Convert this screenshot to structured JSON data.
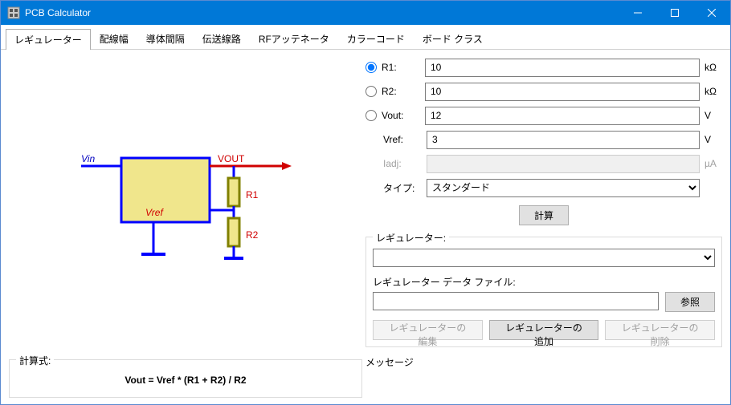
{
  "window": {
    "title": "PCB Calculator"
  },
  "tabs": {
    "items": [
      "レギュレーター",
      "配線幅",
      "導体間隔",
      "伝送線路",
      "RFアッテネータ",
      "カラーコード",
      "ボード クラス"
    ],
    "active_index": 0
  },
  "diagram": {
    "vin": "Vin",
    "vout": "VOUT",
    "vref": "Vref",
    "r1": "R1",
    "r2": "R2",
    "box_fill": "#f0e68c",
    "box_stroke": "#0000ff",
    "resistor_fill": "#f0e68c",
    "resistor_stroke": "#808000",
    "wire_color": "#0000ff",
    "text_red": "#d00000",
    "text_blue": "#0000c0"
  },
  "formula": {
    "legend": "計算式:",
    "text": "Vout = Vref * (R1 + R2) / R2"
  },
  "form": {
    "r1": {
      "label": "R1:",
      "value": "10",
      "unit": "kΩ",
      "selected": true
    },
    "r2": {
      "label": "R2:",
      "value": "10",
      "unit": "kΩ",
      "selected": false
    },
    "vout": {
      "label": "Vout:",
      "value": "12",
      "unit": "V",
      "selected": false
    },
    "vref": {
      "label": "Vref:",
      "value": "3",
      "unit": "V"
    },
    "iadj": {
      "label": "Iadj:",
      "value": "",
      "unit": "µA",
      "disabled": true
    },
    "type": {
      "label": "タイプ:",
      "value": "スタンダード"
    },
    "calc_btn": "計算"
  },
  "regulator_group": {
    "legend": "レギュレーター:",
    "select_value": "",
    "file_label": "レギュレーター データ ファイル:",
    "file_value": "",
    "browse_btn": "参照",
    "edit_btn": "レギュレーターの編集",
    "add_btn": "レギュレーターの追加",
    "del_btn": "レギュレーターの削除"
  },
  "message_label": "メッセージ"
}
